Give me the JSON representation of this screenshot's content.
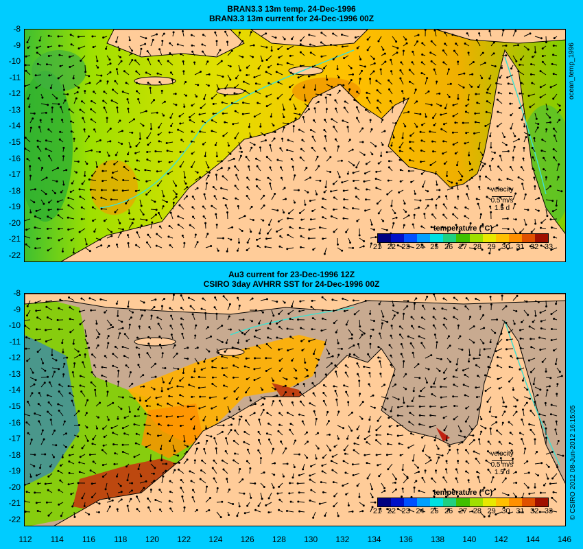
{
  "panels": [
    {
      "title_line1": "BRAN3.3 13m temp. 24-Dec-1996",
      "title_line2": "BRAN3.3 13m current for 24-Dec-1996 00Z",
      "velocity_label": "velocity",
      "velocity_scale": "0.5 m/s",
      "velocity_time": "1.5 d",
      "legend_title": "temperature (°C)"
    },
    {
      "title_line1": "Au3 current for 23-Dec-1996 12Z",
      "title_line2": "CSIRO 3day AVHRR SST for 24-Dec-1996 00Z",
      "velocity_label": "velocity",
      "velocity_scale": "0.5 m/s",
      "velocity_time": "1.5 d",
      "legend_title": "temperature (°C)"
    }
  ],
  "side_label_top": "ocean_temp_1996",
  "side_label_bottom": "© CSIRO 2012  08-Jun-2012 16:15:05",
  "legend_ticks": [
    "21",
    "22",
    "23",
    "24",
    "25",
    "26",
    "27",
    "28",
    "29",
    "30",
    "31",
    "32",
    "33"
  ],
  "legend_colors": [
    "#000080",
    "#0010c8",
    "#0050ff",
    "#00a0ff",
    "#00e0e0",
    "#20d080",
    "#40c000",
    "#a0e000",
    "#e8e800",
    "#ffc000",
    "#ff9000",
    "#e05000",
    "#a01000"
  ],
  "y_ticks": [
    "-8",
    "-9",
    "-10",
    "-11",
    "-12",
    "-13",
    "-14",
    "-15",
    "-16",
    "-17",
    "-18",
    "-19",
    "-20",
    "-21",
    "-22"
  ],
  "x_ticks": [
    "112",
    "114",
    "116",
    "118",
    "120",
    "122",
    "124",
    "126",
    "128",
    "130",
    "132",
    "134",
    "136",
    "138",
    "140",
    "142",
    "144",
    "146"
  ],
  "colors": {
    "background": "#00ccff",
    "land": "#ffcc99",
    "no_data": "#c8aa90",
    "isobath": "#40e0d0"
  }
}
